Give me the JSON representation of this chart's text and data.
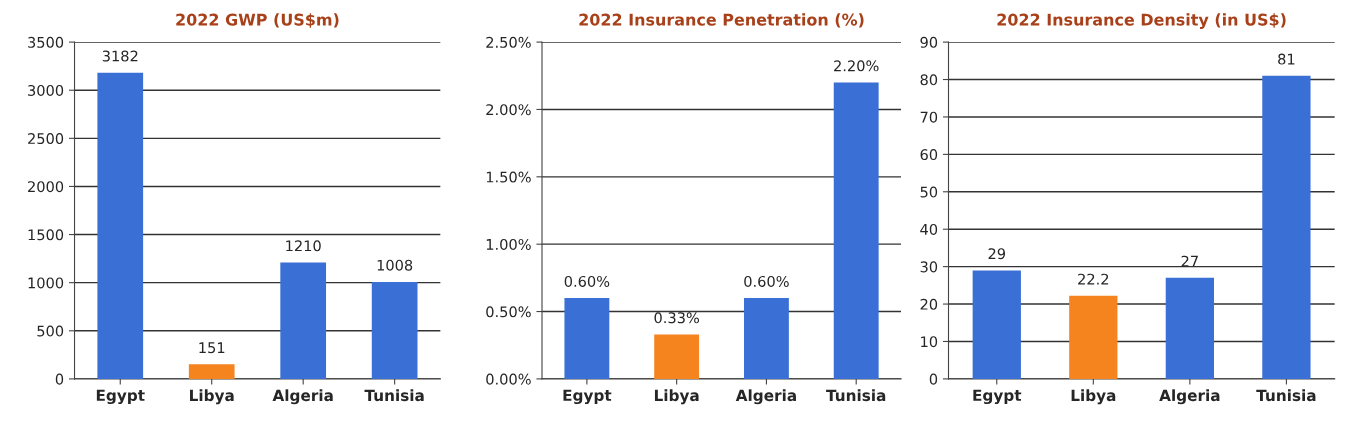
{
  "chart_data": [
    {
      "type": "bar",
      "title": "2022 GWP (US$m)",
      "categories": [
        "Egypt",
        "Libya",
        "Algeria",
        "Tunisia"
      ],
      "values": [
        3182,
        151,
        1210,
        1008
      ],
      "colors": [
        "#3a6fd6",
        "#f5841f",
        "#3a6fd6",
        "#3a6fd6"
      ],
      "ylim": [
        0,
        3500
      ],
      "yticks": [
        0,
        500,
        1000,
        1500,
        2000,
        2500,
        3000,
        3500
      ],
      "grid": "y",
      "data_labels": true
    },
    {
      "type": "bar",
      "title": "2022 Insurance Penetration (%)",
      "categories": [
        "Egypt",
        "Libya",
        "Algeria",
        "Tunisia"
      ],
      "values": [
        0.6,
        0.33,
        0.6,
        2.2
      ],
      "colors": [
        "#3a6fd6",
        "#f5841f",
        "#3a6fd6",
        "#3a6fd6"
      ],
      "value_labels": [
        "0.60%",
        "0.33%",
        "0.60%",
        "2.20%"
      ],
      "ylim": [
        0,
        2.5
      ],
      "yticks": [
        {
          "value": 0,
          "label": "0.00%"
        },
        {
          "value": 0.5,
          "label": "0.50%"
        },
        {
          "value": 1,
          "label": "1.00%"
        },
        {
          "value": 1.5,
          "label": "1.50%"
        },
        {
          "value": 2,
          "label": "2.00%"
        },
        {
          "value": 2.5,
          "label": "2.50%"
        }
      ],
      "grid": "y"
    },
    {
      "type": "bar",
      "title": "2022 Insurance Density (in US$)",
      "categories": [
        "Egypt",
        "Libya",
        "Algeria",
        "Tunisia"
      ],
      "values": [
        29,
        22.2,
        27,
        81
      ],
      "colors": [
        "#3a6fd6",
        "#f5841f",
        "#3a6fd6",
        "#3a6fd6"
      ],
      "ylim": [
        0,
        90
      ],
      "yticks": [
        0,
        10,
        20,
        30,
        40,
        50,
        60,
        70,
        80,
        90
      ],
      "grid": "y",
      "data_labels": true
    }
  ]
}
